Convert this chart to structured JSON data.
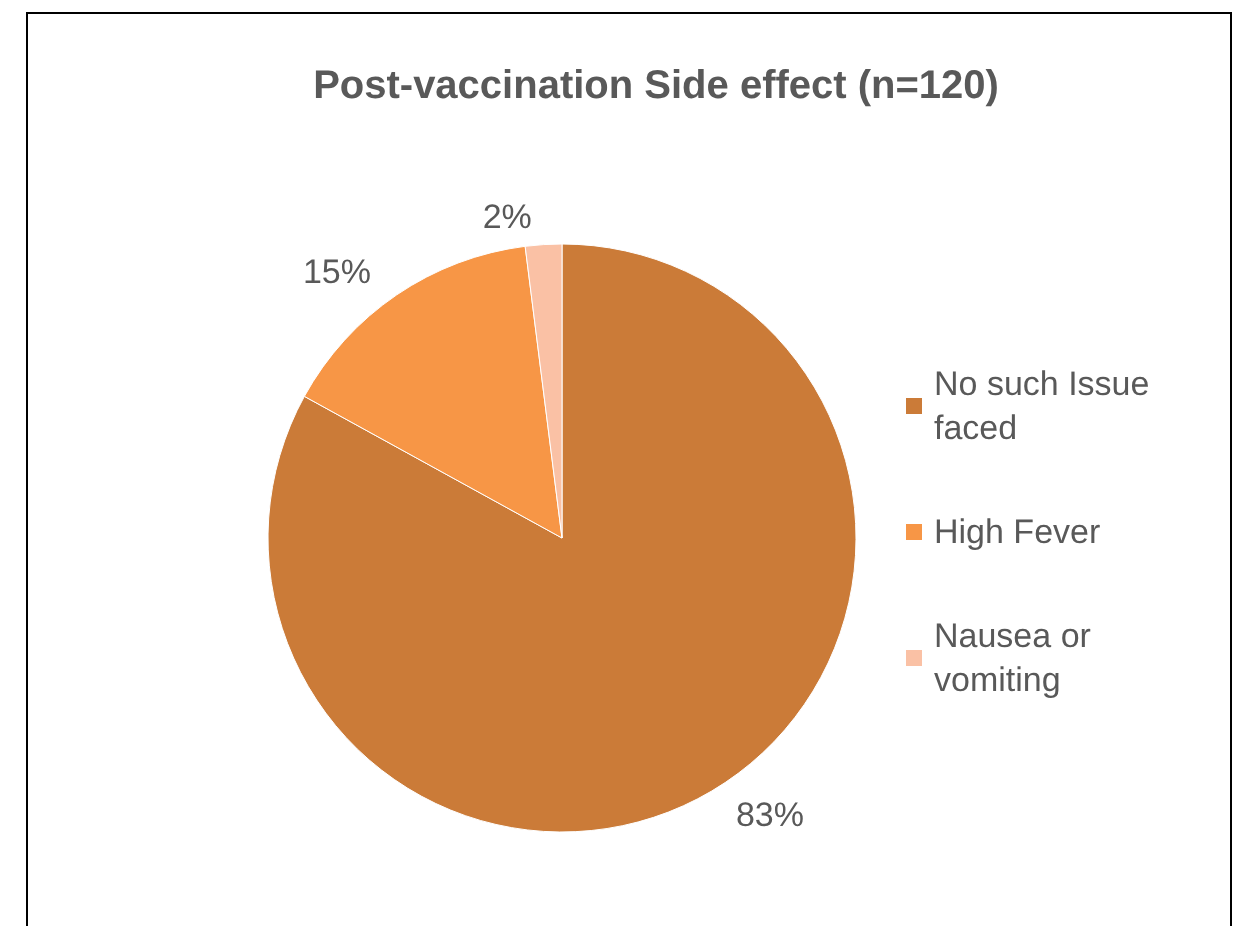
{
  "chart_data": {
    "type": "pie",
    "title": "Post-vaccination Side effect (n=120)",
    "categories": [
      "No such Issue faced",
      "High Fever",
      "Nausea or vomiting"
    ],
    "values": [
      83,
      15,
      2
    ],
    "colors": [
      "#cb7b38",
      "#f79646",
      "#fac1a5"
    ],
    "value_labels": [
      "83%",
      "15%",
      "2%"
    ],
    "legend": "right"
  }
}
